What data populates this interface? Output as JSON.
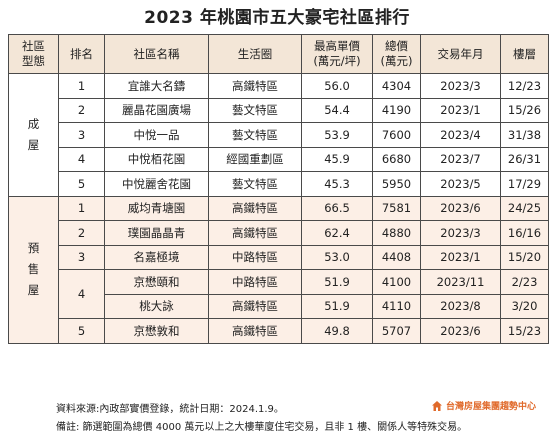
{
  "title": "2023 年桃園市五大豪宅社區排行",
  "headers": {
    "type": [
      "社區",
      "型態"
    ],
    "rank": "排名",
    "name": "社區名稱",
    "area": "生活圈",
    "unit_price": [
      "最高單價",
      "(萬元/坪)"
    ],
    "total": [
      "總價",
      "(萬元)"
    ],
    "date": "交易年月",
    "floor": "樓層"
  },
  "groups": [
    {
      "category": [
        "成",
        "屋"
      ],
      "rows": [
        {
          "rank": "1",
          "name": "宜誰大名鑄",
          "area": "高鐵特區",
          "unit_price": "56.0",
          "total": "4304",
          "date": "2023/3",
          "floor": "12/23"
        },
        {
          "rank": "2",
          "name": "麗晶花園廣場",
          "area": "藝文特區",
          "unit_price": "54.4",
          "total": "4190",
          "date": "2023/1",
          "floor": "15/26"
        },
        {
          "rank": "3",
          "name": "中悅一品",
          "area": "藝文特區",
          "unit_price": "53.9",
          "total": "7600",
          "date": "2023/4",
          "floor": "31/38"
        },
        {
          "rank": "4",
          "name": "中悅栢花園",
          "area": "經國重劃區",
          "unit_price": "45.9",
          "total": "6680",
          "date": "2023/7",
          "floor": "26/31"
        },
        {
          "rank": "5",
          "name": "中悅麗舍花園",
          "area": "藝文特區",
          "unit_price": "45.3",
          "total": "5950",
          "date": "2023/5",
          "floor": "17/29"
        }
      ]
    },
    {
      "category": [
        "預",
        "售",
        "屋"
      ],
      "rows": [
        {
          "rank": "1",
          "name": "威均青塘園",
          "area": "高鐵特區",
          "unit_price": "66.5",
          "total": "7581",
          "date": "2023/6",
          "floor": "24/25"
        },
        {
          "rank": "2",
          "name": "璞園晶晶青",
          "area": "高鐵特區",
          "unit_price": "62.4",
          "total": "4880",
          "date": "2023/3",
          "floor": "16/16"
        },
        {
          "rank": "3",
          "name": "名嘉極境",
          "area": "中路特區",
          "unit_price": "53.0",
          "total": "4408",
          "date": "2023/1",
          "floor": "15/20"
        },
        {
          "rank": "4",
          "name": "京懋頤和",
          "area": "中路特區",
          "unit_price": "51.9",
          "total": "4100",
          "date": "2023/11",
          "floor": "2/23"
        },
        {
          "rank": "",
          "name": "桃大詠",
          "area": "高鐵特區",
          "unit_price": "51.9",
          "total": "4110",
          "date": "2023/8",
          "floor": "3/20"
        },
        {
          "rank": "5",
          "name": "京懋敦和",
          "area": "高鐵特區",
          "unit_price": "49.8",
          "total": "5707",
          "date": "2023/6",
          "floor": "15/23"
        }
      ]
    }
  ],
  "footer": {
    "source": "資料來源:內政部實價登錄，統計日期：2024.1.9。",
    "note": "備註: 篩選範圍為總價 4000 萬元以上之大樓華廈住宅交易，且非 1 樓、關係人等特殊交易。"
  },
  "brand": {
    "text": "台灣房屋集團趨勢中心",
    "color": "#e06a2b",
    "icon": "house-logo-icon"
  },
  "colors": {
    "header_bg": "#f3e6d7",
    "presale_bg": "#fcefe6",
    "border": "#4a4a4a"
  }
}
